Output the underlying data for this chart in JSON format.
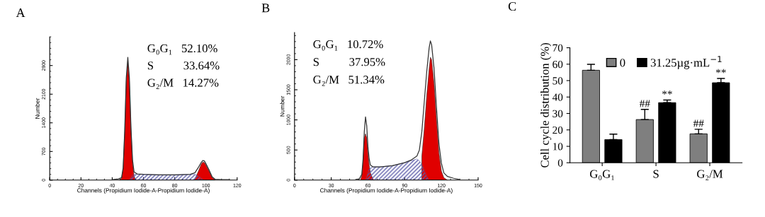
{
  "chart_data": [
    {
      "type": "area",
      "title": "A",
      "xlabel": "Channels (Propidium Iodide-A-Propidium Iodide-A)",
      "ylabel": "Number",
      "x": [
        40,
        44,
        46,
        47,
        48,
        49,
        50,
        51,
        52,
        53,
        54,
        56,
        60,
        70,
        80,
        90,
        93,
        95,
        97,
        98,
        99,
        100,
        102,
        104,
        106,
        110,
        115
      ],
      "series": [
        {
          "type": "area",
          "color": "#e00000",
          "x": [
            45,
            46,
            47,
            48,
            49,
            50,
            51,
            52,
            53,
            54,
            55
          ],
          "values": [
            0,
            50,
            280,
            1150,
            2400,
            2880,
            2400,
            1250,
            450,
            100,
            0
          ]
        },
        {
          "type": "area",
          "color": "#e00000",
          "x": [
            92,
            93,
            95,
            97,
            98,
            99,
            100,
            102,
            104,
            106
          ],
          "values": [
            0,
            30,
            200,
            390,
            440,
            430,
            370,
            220,
            60,
            0
          ]
        },
        {
          "type": "area",
          "color": "#5a5aa8",
          "x": [
            51,
            52,
            53,
            54,
            56,
            60,
            70,
            80,
            90,
            93,
            95,
            97,
            98,
            99
          ],
          "values": [
            0,
            60,
            120,
            140,
            140,
            140,
            130,
            130,
            140,
            140,
            100,
            40,
            10,
            0
          ]
        },
        {
          "type": "line",
          "color": "#333333",
          "values": [
            10,
            30,
            60,
            300,
            1200,
            2500,
            3000,
            2500,
            1300,
            500,
            200,
            150,
            140,
            130,
            130,
            140,
            180,
            300,
            430,
            480,
            470,
            400,
            250,
            80,
            20,
            10,
            10
          ]
        }
      ],
      "xlim": [
        0,
        120
      ],
      "xticks": [
        0,
        20,
        40,
        60,
        80,
        100,
        120
      ],
      "ylim": [
        0,
        3500
      ],
      "yticks": [
        0,
        700,
        1400,
        2100,
        2800
      ],
      "annotations": [
        "G₀G₁   52.10%",
        "S          33.64%",
        "G₂/M   14.27%"
      ],
      "grid": false
    },
    {
      "type": "area",
      "title": "B",
      "xlabel": "Channels (Propidium Iodide-A-Propidium Iodide-A)",
      "ylabel": "Number",
      "x": [
        50,
        53,
        55,
        56,
        57,
        58,
        59,
        60,
        61,
        62,
        64,
        70,
        80,
        90,
        95,
        100,
        102,
        104,
        106,
        108,
        110,
        111,
        112,
        114,
        116,
        118,
        120,
        122,
        125,
        130,
        135
      ],
      "series": [
        {
          "type": "area",
          "color": "#e00000",
          "x": [
            54,
            55,
            56,
            57,
            58,
            59,
            60,
            61,
            62,
            64,
            65
          ],
          "values": [
            0,
            80,
            320,
            700,
            770,
            700,
            450,
            250,
            120,
            20,
            0
          ]
        },
        {
          "type": "area",
          "color": "#e00000",
          "x": [
            104,
            106,
            108,
            110,
            111,
            112,
            114,
            116,
            118,
            120,
            122,
            125
          ],
          "values": [
            400,
            850,
            1400,
            1850,
            2040,
            2000,
            1600,
            1000,
            450,
            150,
            40,
            0
          ]
        },
        {
          "type": "area",
          "color": "#5a5aa8",
          "x": [
            58,
            59,
            60,
            61,
            62,
            64,
            70,
            80,
            90,
            95,
            100,
            102,
            104,
            106,
            108,
            110
          ],
          "values": [
            0,
            50,
            120,
            180,
            200,
            220,
            220,
            240,
            290,
            320,
            350,
            320,
            260,
            150,
            60,
            0
          ]
        },
        {
          "type": "line",
          "color": "#333333",
          "values": [
            10,
            20,
            100,
            350,
            800,
            1050,
            900,
            550,
            350,
            250,
            220,
            220,
            240,
            290,
            330,
            400,
            500,
            800,
            1300,
            1800,
            2200,
            2310,
            2250,
            1850,
            1200,
            600,
            280,
            120,
            60,
            30,
            10
          ]
        }
      ],
      "xlim": [
        0,
        150
      ],
      "xticks": [
        0,
        30,
        60,
        90,
        120,
        150
      ],
      "ylim": [
        0,
        2450
      ],
      "yticks": [
        0,
        500,
        1000,
        1500,
        2000
      ],
      "annotations": [
        "G₀G₁   10.72%",
        "S          37.95%",
        "G₂/M   51.34%"
      ],
      "grid": false
    },
    {
      "type": "bar",
      "title": "C",
      "ylabel": "Cell cycle distribution (%)",
      "categories": [
        "G₀G₁",
        "S",
        "G₂/M"
      ],
      "series": [
        {
          "name": "0",
          "color": "#7f7f7f",
          "values": [
            56.3,
            26.3,
            17.6
          ],
          "errors": [
            3.6,
            6.2,
            2.8
          ]
        },
        {
          "name": "31.25µg·mL$^{−1}$",
          "color": "#000000",
          "values": [
            14.1,
            36.6,
            48.7
          ],
          "errors": [
            3.3,
            1.6,
            2.6
          ]
        }
      ],
      "ylim": [
        0,
        70
      ],
      "yticks": [
        0,
        10,
        20,
        30,
        40,
        50,
        60,
        70
      ],
      "annotations": [
        "##",
        "**",
        "##",
        "**"
      ],
      "grid": false,
      "legend": "top"
    }
  ]
}
